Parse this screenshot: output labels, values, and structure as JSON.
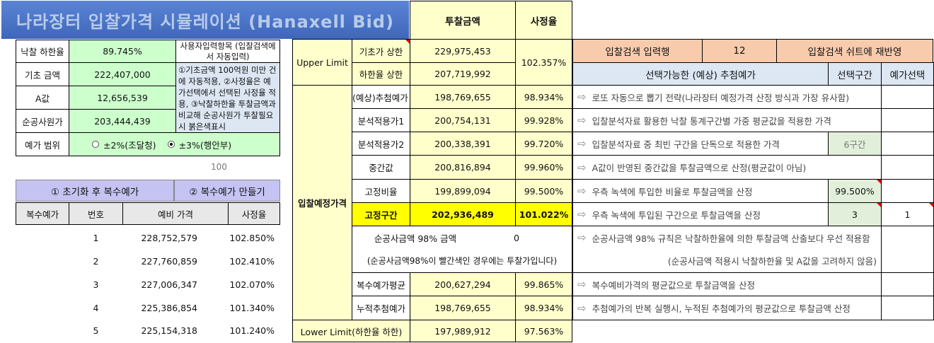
{
  "title": "나라장터 입찰가격 시뮬레이션 (Hanaxell Bid)",
  "left_params": [
    {
      "label": "낙찰 하한율",
      "value": "89.745%"
    },
    {
      "label": "기초 금액",
      "value": "222,407,000"
    },
    {
      "label": "A값",
      "value": "12,656,539"
    },
    {
      "label": "순공사원가",
      "value": "203,444,439"
    }
  ],
  "note": {
    "header": "사용자입력항목 (입찰검색에서 자동입력)",
    "body": "①기초금액 100억원 미만 건에 자동적용, ②사정율은 예가선택에서 선택된 사정율 적용, ③낙찰하한율 투찰금액과 비교해 순공사원가 투찰필요시 붉은색표시"
  },
  "range": {
    "label": "예가 범위",
    "option1": "±2%(조달청)",
    "option2": "±3%(행안부)",
    "selected": "option2"
  },
  "count_label": "100",
  "buttons": {
    "reset": "① 초기화 후 복수예가",
    "make": "② 복수예가 만들기"
  },
  "multi_table": {
    "headers": [
      "복수예가",
      "번호",
      "예비 가격",
      "사정율"
    ],
    "rows": [
      {
        "no": "1",
        "price": "228,752,579",
        "rate": "102.850%"
      },
      {
        "no": "2",
        "price": "227,760,859",
        "rate": "102.410%"
      },
      {
        "no": "3",
        "price": "227,006,347",
        "rate": "102.070%"
      },
      {
        "no": "4",
        "price": "225,386,854",
        "rate": "101.340%"
      },
      {
        "no": "5",
        "price": "225,154,318",
        "rate": "101.240%"
      }
    ]
  },
  "mid": {
    "col_bid": "투찰금액",
    "col_rate": "사정율",
    "upper_label": "Upper Limit",
    "upper_rows": [
      {
        "label": "기초가 상한",
        "value": "229,975,453"
      },
      {
        "label": "하한율 상한",
        "value": "207,719,992"
      }
    ],
    "upper_rate": "102.357%",
    "group_label": "입찰예정가격",
    "rows": [
      {
        "label": "(예상)추첨예가",
        "value": "198,769,655",
        "rate": "98.934%"
      },
      {
        "label": "분석적용가1",
        "value": "200,754,131",
        "rate": "99.928%"
      },
      {
        "label": "분석적용가2",
        "value": "200,338,391",
        "rate": "99.720%"
      },
      {
        "label": "중간값",
        "value": "200,816,894",
        "rate": "99.960%"
      },
      {
        "label": "고정비율",
        "value": "199,899,094",
        "rate": "99.500%"
      },
      {
        "label": "고정구간",
        "value": "202,936,489",
        "rate": "101.022%"
      }
    ],
    "net_label": "순공사금액 98% 금액",
    "net_value": "0",
    "net_note": "(순공사금액98%이 빨간색인 경우에는 투찰가입니다)",
    "rows2": [
      {
        "label": "복수예가평균",
        "value": "200,627,294",
        "rate": "99.865%"
      },
      {
        "label": "누적추첨예가",
        "value": "198,769,655",
        "rate": "98.934%"
      }
    ],
    "lower_label": "Lower Limit(하한율 하한)",
    "lower_value": "197,989,912",
    "lower_rate": "97.563%"
  },
  "right": {
    "input_row_label": "입찰검색 입력행",
    "input_row_value": "12",
    "reflect_button": "입찰검색 쉬트에 재반영",
    "header_candidates": "선택가능한 (예상) 추첨예가",
    "header_section": "선택구간",
    "header_select": "예가선택",
    "descriptions": [
      "로또 자동으로 뽑기 전략(나라장터 예정가격 산정 방식과 가장 유사함)",
      "입찰분석자료 활용한 낙찰 통계구간별 가중 평균값을 적용한 가격",
      "입찰분석자료 중 최빈 구간을 단독으로 적용한 가격",
      "A값이 반영된 중간값을 투찰금액으로 산정(평균값이 아님)",
      "우측 녹색에 투입한 비율로 투찰금액을 산정",
      "우측 녹색에 투입된 구간으로 투찰금액을 산정",
      "순공사금액 98% 규칙은 낙찰하한율에 의한 투찰금액 산출보다 우선 적용함",
      "(순공사금액 적용시 낙찰하한율 및 A값을 고려하지 않음)",
      "복수예비가격의 평균값으로 투찰금액을 산정",
      "추첨예가의 반복 실행시, 누적된 추첨예가의 평균값으로 투찰금액 산정"
    ],
    "section_values": {
      "analysis2": "6구간",
      "fixed_rate": "99.500%",
      "fixed_section": "3",
      "select": "1"
    }
  },
  "colors": {
    "title_bg": "#4472c4",
    "green": "#ccffcc",
    "yellow": "#ffff00",
    "orange": "#f8cbad",
    "button": "#c5c3f2"
  }
}
